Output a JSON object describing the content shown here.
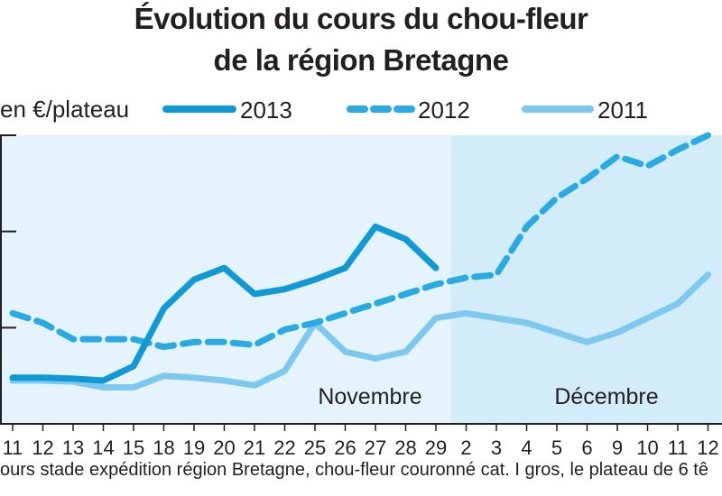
{
  "title_line1": "Évolution du cours du chou-fleur",
  "title_line2": "de la région Bretagne",
  "unit_label": "en €/plateau",
  "footnote": "ours stade expédition région Bretagne, chou-fleur couronné cat. I gros, le plateau de 6 tê",
  "colors": {
    "s2013": "#1199d6",
    "s2012": "#2aaae2",
    "s2011": "#7dc8ee",
    "bg_nov": "#e4f3fc",
    "bg_dec": "#d2ecfa",
    "axis": "#231f20",
    "text": "#231f20"
  },
  "chart_data": {
    "type": "line",
    "title": "Évolution du cours du chou-fleur de la région Bretagne",
    "ylabel": "en €/plateau",
    "categories": [
      "11",
      "12",
      "13",
      "14",
      "15",
      "18",
      "19",
      "20",
      "21",
      "22",
      "25",
      "26",
      "27",
      "28",
      "29",
      "2",
      "3",
      "4",
      "5",
      "6",
      "9",
      "10",
      "11",
      "12"
    ],
    "periods": [
      {
        "label": "Novembre",
        "categories": [
          "11",
          "12",
          "13",
          "14",
          "15",
          "18",
          "19",
          "20",
          "21",
          "22",
          "25",
          "26",
          "27",
          "28",
          "29"
        ]
      },
      {
        "label": "Décembre",
        "categories": [
          "2",
          "3",
          "4",
          "5",
          "6",
          "9",
          "10",
          "11",
          "12"
        ]
      }
    ],
    "series": [
      {
        "name": "2013",
        "style": "solid-thick",
        "values": [
          0.48,
          0.48,
          0.47,
          0.45,
          0.6,
          1.2,
          1.5,
          1.62,
          1.35,
          1.4,
          1.5,
          1.62,
          2.05,
          1.92,
          1.62,
          null,
          null,
          null,
          null,
          null,
          null,
          null,
          null,
          null
        ]
      },
      {
        "name": "2012",
        "style": "dashed",
        "values": [
          1.15,
          1.05,
          0.88,
          0.88,
          0.88,
          0.8,
          0.85,
          0.85,
          0.82,
          0.98,
          1.05,
          1.15,
          1.25,
          1.35,
          1.45,
          1.52,
          1.55,
          2.05,
          2.35,
          2.55,
          2.78,
          2.68,
          2.85,
          3.0
        ]
      },
      {
        "name": "2011",
        "style": "solid-thin",
        "values": [
          0.45,
          0.45,
          0.44,
          0.38,
          0.38,
          0.5,
          0.48,
          0.45,
          0.4,
          0.55,
          1.05,
          0.75,
          0.68,
          0.75,
          1.1,
          1.15,
          1.1,
          1.05,
          0.95,
          0.85,
          0.95,
          1.1,
          1.25,
          1.55
        ]
      }
    ],
    "ylim": [
      0,
      3
    ],
    "grid": false,
    "legend": "top"
  }
}
